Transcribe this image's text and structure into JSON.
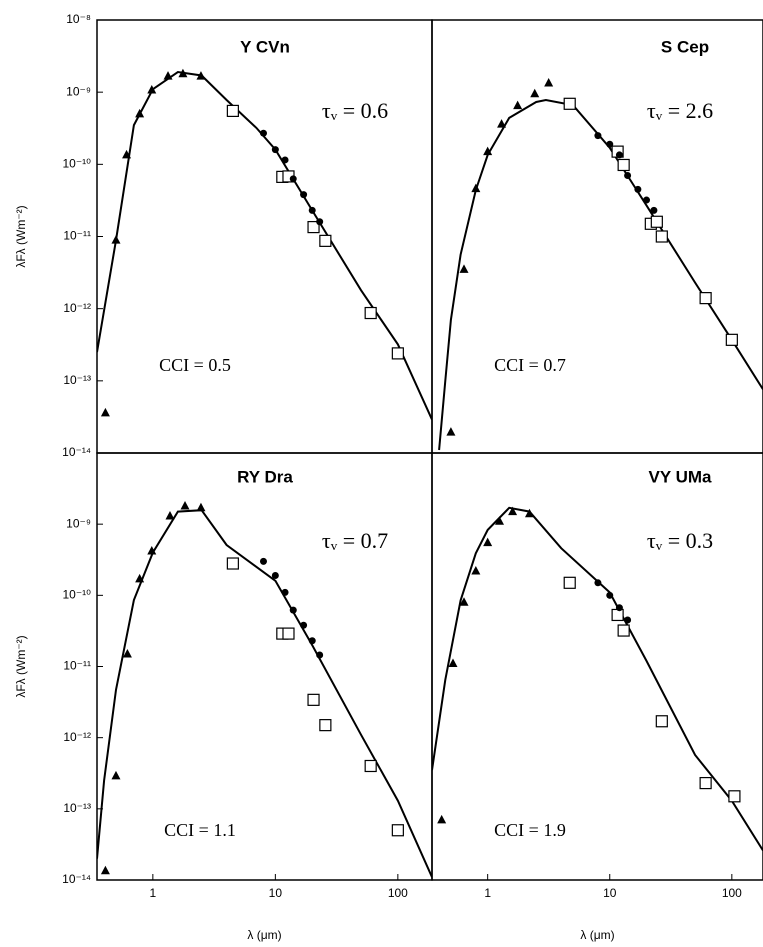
{
  "chart_data": [
    {
      "type": "scatter",
      "title": "Y CVn",
      "annotations": [
        "τᵥ = 0.6",
        "CCI = 0.5"
      ],
      "xlog": true,
      "ylog": true,
      "xlim": [
        0.35,
        190
      ],
      "ylim": [
        1e-14,
        1e-08
      ],
      "ylabel": "λFλ (Wm⁻²)",
      "yticks": [
        {
          "value": 1e-08,
          "label": "10⁻⁸"
        },
        {
          "value": 1e-09,
          "label": "10⁻⁹"
        },
        {
          "value": 1e-10,
          "label": "10⁻¹⁰"
        },
        {
          "value": 1e-11,
          "label": "10⁻¹¹"
        },
        {
          "value": 1e-12,
          "label": "10⁻¹²"
        },
        {
          "value": 1e-13,
          "label": "10⁻¹³"
        },
        {
          "value": 1e-14,
          "label": "10⁻¹⁴"
        }
      ],
      "series": [
        {
          "marker": "triangle",
          "color": "#000000",
          "x": [
            0.41,
            0.5,
            0.61,
            0.78,
            0.98,
            1.33,
            1.76,
            2.47
          ],
          "values": [
            3.6e-14,
            8.9e-12,
            1.35e-10,
            5e-10,
            1.07e-09,
            1.67e-09,
            1.8e-09,
            1.67e-09
          ]
        },
        {
          "marker": "square",
          "color": "#000000",
          "x": [
            4.5,
            11.4,
            12.8,
            20.5,
            25.6,
            60,
            100
          ],
          "values": [
            5.5e-10,
            6.7e-11,
            6.8e-11,
            1.35e-11,
            8.7e-12,
            8.7e-13,
            2.4e-13
          ]
        },
        {
          "marker": "dot",
          "color": "#000000",
          "x": [
            8,
            10,
            12,
            14,
            17,
            20,
            23
          ],
          "values": [
            2.7e-10,
            1.6e-10,
            1.15e-10,
            6.3e-11,
            3.8e-11,
            2.3e-11,
            1.6e-11
          ]
        },
        {
          "marker": "line",
          "color": "#000000",
          "x": [
            0.35,
            0.5,
            0.7,
            1,
            1.6,
            2.5,
            4,
            7,
            10,
            20,
            50,
            100,
            190
          ],
          "values": [
            2.5e-13,
            8.9e-12,
            3.5e-10,
            1.1e-09,
            1.9e-09,
            1.7e-09,
            7.8e-10,
            3.2e-10,
            1.6e-10,
            2.3e-11,
            1.8e-12,
            3.2e-13,
            2.9e-14
          ]
        }
      ]
    },
    {
      "type": "scatter",
      "title": "S Cep",
      "annotations": [
        "τᵥ = 2.6",
        "CCI = 0.7"
      ],
      "xlog": true,
      "ylog": true,
      "xlim": [
        0.35,
        180
      ],
      "ylim": [
        1e-14,
        1e-08
      ],
      "series": [
        {
          "marker": "triangle",
          "color": "#000000",
          "x": [
            0.5,
            0.64,
            0.8,
            1.0,
            1.3,
            1.76,
            2.43,
            3.16
          ],
          "values": [
            1.95e-14,
            3.5e-12,
            4.6e-11,
            1.5e-10,
            3.6e-10,
            6.5e-10,
            9.5e-10,
            1.34e-09
          ]
        },
        {
          "marker": "square",
          "color": "#000000",
          "x": [
            4.7,
            11.6,
            13,
            21.7,
            24.3,
            26.7,
            61,
            100
          ],
          "values": [
            6.9e-10,
            1.5e-10,
            9.8e-11,
            1.5e-11,
            1.6e-11,
            1e-11,
            1.4e-12,
            3.7e-13
          ]
        },
        {
          "marker": "dot",
          "color": "#000000",
          "x": [
            8,
            10,
            12,
            14,
            17,
            20,
            23
          ],
          "values": [
            2.5e-10,
            1.9e-10,
            1.35e-10,
            7e-11,
            4.5e-11,
            3.2e-11,
            2.3e-11
          ]
        },
        {
          "marker": "line",
          "color": "#000000",
          "x": [
            0.4,
            0.45,
            0.5,
            0.6,
            0.8,
            1,
            1.5,
            2.5,
            3,
            5,
            10,
            20,
            50,
            100,
            180
          ],
          "values": [
            1.1e-14,
            1e-13,
            7e-13,
            5.6e-12,
            4.4e-11,
            1.35e-10,
            4.4e-10,
            7.3e-10,
            7.8e-10,
            6.6e-10,
            1.7e-10,
            2.7e-11,
            2.3e-12,
            3.7e-13,
            7.6e-14
          ]
        }
      ]
    },
    {
      "type": "scatter",
      "title": "RY Dra",
      "annotations": [
        "τᵥ = 0.7",
        "CCI = 1.1"
      ],
      "xlog": true,
      "ylog": true,
      "xlim": [
        0.35,
        190
      ],
      "ylim": [
        1e-14,
        1e-08
      ],
      "ylabel": "λFλ (Wm⁻²)",
      "xlabel": "λ (μm)",
      "xticks": [
        1,
        10,
        100
      ],
      "yticks": [
        {
          "value": 1e-09,
          "label": "10⁻⁹"
        },
        {
          "value": 1e-10,
          "label": "10⁻¹⁰"
        },
        {
          "value": 1e-11,
          "label": "10⁻¹¹"
        },
        {
          "value": 1e-12,
          "label": "10⁻¹²"
        },
        {
          "value": 1e-13,
          "label": "10⁻¹³"
        },
        {
          "value": 1e-14,
          "label": "10⁻¹⁴"
        }
      ],
      "series": [
        {
          "marker": "triangle",
          "color": "#000000",
          "x": [
            0.41,
            0.5,
            0.62,
            0.78,
            0.98,
            1.38,
            1.83,
            2.47
          ],
          "values": [
            1.35e-14,
            2.9e-13,
            1.5e-11,
            1.7e-10,
            4.2e-10,
            1.3e-09,
            1.8e-09,
            1.7e-09
          ]
        },
        {
          "marker": "square",
          "color": "#000000",
          "x": [
            4.5,
            11.4,
            12.8,
            20.5,
            25.6,
            60,
            100
          ],
          "values": [
            2.8e-10,
            2.9e-11,
            2.9e-11,
            3.4e-12,
            1.5e-12,
            4e-13,
            5e-14
          ]
        },
        {
          "marker": "dot",
          "color": "#000000",
          "x": [
            8,
            10,
            12,
            14,
            17,
            20,
            23
          ],
          "values": [
            3e-10,
            1.9e-10,
            1.1e-10,
            6.2e-11,
            3.8e-11,
            2.3e-11,
            1.45e-11
          ]
        },
        {
          "marker": "line",
          "color": "#000000",
          "x": [
            0.35,
            0.4,
            0.5,
            0.7,
            1,
            1.6,
            2.5,
            4,
            10,
            20,
            50,
            100,
            190
          ],
          "values": [
            2e-14,
            2.5e-13,
            4.7e-12,
            8.6e-11,
            4e-10,
            1.5e-09,
            1.57e-09,
            5.1e-10,
            1.6e-10,
            2e-11,
            1.1e-12,
            1.3e-13,
            1.1e-14
          ]
        }
      ]
    },
    {
      "type": "scatter",
      "title": "VY UMa",
      "annotations": [
        "τᵥ = 0.3",
        "CCI = 1.9"
      ],
      "xlog": true,
      "ylog": true,
      "xlim": [
        0.35,
        180
      ],
      "ylim": [
        1e-14,
        1e-08
      ],
      "xlabel": "λ (μm)",
      "xticks": [
        1,
        10,
        100
      ],
      "series": [
        {
          "marker": "triangle",
          "color": "#000000",
          "x": [
            0.42,
            0.52,
            0.64,
            0.8,
            1.0,
            1.25,
            1.6,
            2.2
          ],
          "values": [
            7e-14,
            1.1e-11,
            8e-11,
            2.2e-10,
            5.5e-10,
            1.1e-09,
            1.5e-09,
            1.4e-09
          ]
        },
        {
          "marker": "square",
          "color": "#000000",
          "x": [
            4.7,
            11.6,
            13,
            26.7,
            61,
            105
          ],
          "values": [
            1.5e-10,
            5.3e-11,
            3.2e-11,
            1.7e-12,
            2.3e-13,
            1.5e-13
          ]
        },
        {
          "marker": "dot",
          "color": "#000000",
          "x": [
            8,
            10,
            12,
            14
          ],
          "values": [
            1.5e-10,
            1e-10,
            6.7e-11,
            4.5e-11
          ]
        },
        {
          "marker": "line",
          "color": "#000000",
          "x": [
            0.35,
            0.45,
            0.6,
            0.8,
            1,
            1.5,
            2.2,
            4,
            10,
            20,
            50,
            100,
            180
          ],
          "values": [
            3.5e-13,
            6.5e-12,
            8.5e-11,
            3.9e-10,
            8.3e-10,
            1.7e-09,
            1.5e-09,
            4.6e-10,
            1.1e-10,
            1.2e-11,
            5.7e-13,
            1.3e-13,
            2.6e-14
          ]
        }
      ]
    }
  ]
}
